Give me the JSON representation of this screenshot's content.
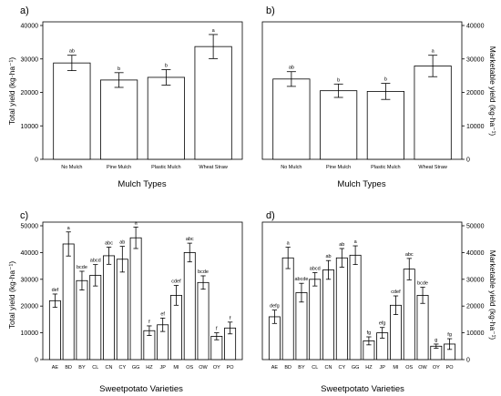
{
  "figure": {
    "panels": [
      {
        "letter": "a)",
        "ylabel": "Total yield (kg·ha⁻¹)",
        "xlabel": "Mulch Types"
      },
      {
        "letter": "b)",
        "ylabel": "Marketable yield (kg·ha⁻¹)",
        "xlabel": "Mulch Types"
      },
      {
        "letter": "c)",
        "ylabel": "Total yield (kg·ha⁻¹)",
        "xlabel": "Sweetpotato Varieties"
      },
      {
        "letter": "d)",
        "ylabel": "Marketable yield (kg·ha⁻¹)",
        "xlabel": "Sweetpotato Varieties"
      }
    ]
  },
  "chart_data": [
    {
      "type": "bar",
      "panel": "a)",
      "categories": [
        "No Mulch",
        "Pine Mulch",
        "Plastic Mulch",
        "Wheat Straw"
      ],
      "values": [
        28800,
        23700,
        24500,
        33700
      ],
      "errors": [
        2300,
        2200,
        2300,
        3600
      ],
      "letters": [
        "ab",
        "b",
        "b",
        "a"
      ],
      "xlabel": "Mulch Types",
      "ylabel": "Total yield (kg·ha⁻¹)",
      "ylim": [
        0,
        40000
      ],
      "yticks": [
        0,
        10000,
        20000,
        30000,
        40000
      ],
      "yaxis_side": "left"
    },
    {
      "type": "bar",
      "panel": "b)",
      "categories": [
        "No Mulch",
        "Pine Mulch",
        "Plastic Mulch",
        "Wheat Straw"
      ],
      "values": [
        24000,
        20500,
        20300,
        27900
      ],
      "errors": [
        2200,
        2000,
        2400,
        3200
      ],
      "letters": [
        "ab",
        "b",
        "b",
        "a"
      ],
      "xlabel": "Mulch Types",
      "ylabel": "Marketable yield (kg·ha⁻¹)",
      "ylim": [
        0,
        40000
      ],
      "yticks": [
        0,
        10000,
        20000,
        30000,
        40000
      ],
      "yaxis_side": "right"
    },
    {
      "type": "bar",
      "panel": "c)",
      "categories": [
        "AE",
        "BD",
        "BY",
        "CL",
        "CN",
        "CY",
        "GG",
        "HZ",
        "JP",
        "MI",
        "OS",
        "OW",
        "OY",
        "PO"
      ],
      "values": [
        22000,
        43200,
        29500,
        31500,
        38800,
        37500,
        45500,
        10800,
        13000,
        24000,
        40000,
        28800,
        8700,
        11800
      ],
      "errors": [
        2500,
        4500,
        3500,
        4000,
        3200,
        4800,
        4000,
        1800,
        2500,
        3700,
        3500,
        2500,
        1300,
        2200
      ],
      "letters": [
        "def",
        "a",
        "bcde",
        "abcd",
        "abc",
        "ab",
        "a",
        "f",
        "ef",
        "cdef",
        "abc",
        "bcde",
        "f",
        "f"
      ],
      "xlabel": "Sweetpotato Varieties",
      "ylabel": "Total yield (kg·ha⁻¹)",
      "ylim": [
        0,
        50000
      ],
      "yticks": [
        0,
        10000,
        20000,
        30000,
        40000,
        50000
      ],
      "yaxis_side": "left"
    },
    {
      "type": "bar",
      "panel": "d)",
      "categories": [
        "AE",
        "BD",
        "BY",
        "CL",
        "CN",
        "CY",
        "GG",
        "HZ",
        "JP",
        "MI",
        "OS",
        "OW",
        "OY",
        "PO"
      ],
      "values": [
        16000,
        38000,
        25000,
        30000,
        33500,
        38000,
        39000,
        7000,
        10000,
        20300,
        33800,
        24000,
        5000,
        5800
      ],
      "errors": [
        2500,
        4000,
        3500,
        2500,
        3500,
        3500,
        3500,
        1500,
        2000,
        3500,
        4000,
        3000,
        800,
        2000
      ],
      "letters": [
        "defg",
        "a",
        "abcde",
        "abcd",
        "ab",
        "ab",
        "a",
        "fg",
        "efg",
        "cdef",
        "abc",
        "bcde",
        "g",
        "fg"
      ],
      "xlabel": "Sweetpotato Varieties",
      "ylabel": "Marketable yield (kg·ha⁻¹)",
      "ylim": [
        0,
        50000
      ],
      "yticks": [
        0,
        10000,
        20000,
        30000,
        40000,
        50000
      ],
      "yaxis_side": "right"
    }
  ]
}
